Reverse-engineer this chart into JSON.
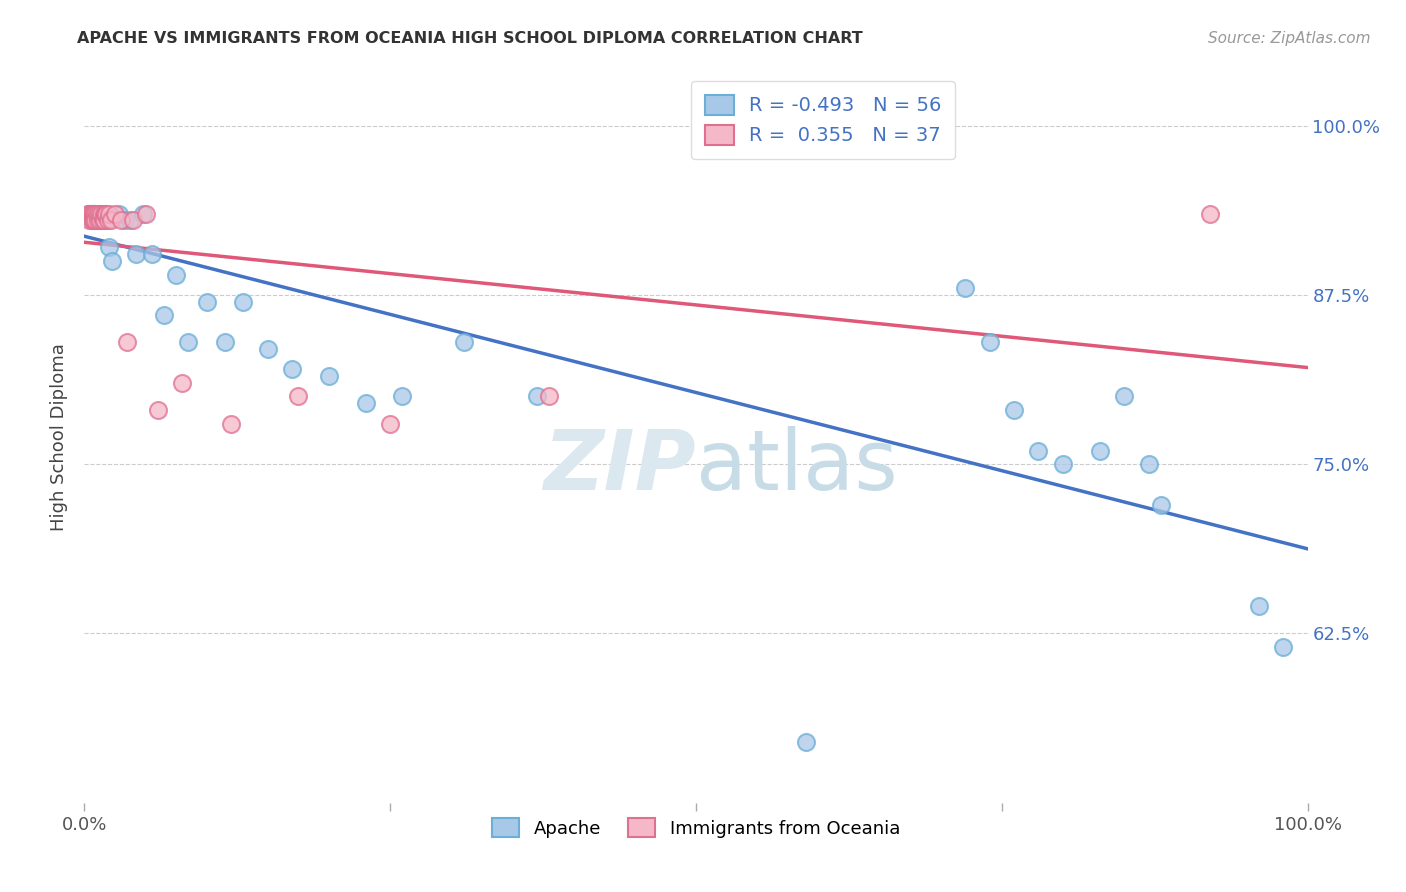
{
  "title": "APACHE VS IMMIGRANTS FROM OCEANIA HIGH SCHOOL DIPLOMA CORRELATION CHART",
  "source": "Source: ZipAtlas.com",
  "ylabel": "High School Diploma",
  "ytick_labels": [
    "62.5%",
    "75.0%",
    "87.5%",
    "100.0%"
  ],
  "ytick_values": [
    0.625,
    0.75,
    0.875,
    1.0
  ],
  "xlim": [
    0.0,
    1.0
  ],
  "ylim": [
    0.5,
    1.04
  ],
  "legend_apache_r": "-0.493",
  "legend_apache_n": "56",
  "legend_oceania_r": "0.355",
  "legend_oceania_n": "37",
  "apache_color": "#a8c8e8",
  "apache_edge_color": "#6baed6",
  "oceania_color": "#f4b8c8",
  "oceania_edge_color": "#e07090",
  "apache_line_color": "#4472c4",
  "oceania_line_color": "#e05878",
  "watermark_color": "#dce8f0",
  "background_color": "#ffffff",
  "apache_x": [
    0.003,
    0.004,
    0.005,
    0.005,
    0.006,
    0.006,
    0.007,
    0.007,
    0.007,
    0.008,
    0.008,
    0.009,
    0.009,
    0.01,
    0.01,
    0.011,
    0.011,
    0.012,
    0.013,
    0.014,
    0.015,
    0.016,
    0.018,
    0.02,
    0.023,
    0.028,
    0.033,
    0.037,
    0.042,
    0.048,
    0.055,
    0.065,
    0.075,
    0.085,
    0.1,
    0.115,
    0.13,
    0.15,
    0.17,
    0.2,
    0.23,
    0.26,
    0.31,
    0.37,
    0.59,
    0.72,
    0.74,
    0.76,
    0.78,
    0.8,
    0.83,
    0.85,
    0.87,
    0.88,
    0.96,
    0.98
  ],
  "apache_y": [
    0.935,
    0.935,
    0.935,
    0.935,
    0.935,
    0.93,
    0.935,
    0.935,
    0.93,
    0.935,
    0.93,
    0.935,
    0.93,
    0.935,
    0.93,
    0.93,
    0.93,
    0.935,
    0.93,
    0.935,
    0.93,
    0.935,
    0.93,
    0.91,
    0.9,
    0.935,
    0.93,
    0.93,
    0.905,
    0.935,
    0.905,
    0.86,
    0.89,
    0.84,
    0.87,
    0.84,
    0.87,
    0.835,
    0.82,
    0.815,
    0.795,
    0.8,
    0.84,
    0.8,
    0.545,
    0.88,
    0.84,
    0.79,
    0.76,
    0.75,
    0.76,
    0.8,
    0.75,
    0.72,
    0.645,
    0.615
  ],
  "oceania_x": [
    0.003,
    0.004,
    0.005,
    0.005,
    0.006,
    0.006,
    0.007,
    0.007,
    0.008,
    0.008,
    0.009,
    0.009,
    0.01,
    0.011,
    0.012,
    0.013,
    0.014,
    0.015,
    0.016,
    0.016,
    0.017,
    0.018,
    0.019,
    0.02,
    0.022,
    0.025,
    0.03,
    0.035,
    0.04,
    0.05,
    0.06,
    0.08,
    0.12,
    0.175,
    0.25,
    0.38,
    0.92
  ],
  "oceania_y": [
    0.935,
    0.93,
    0.935,
    0.935,
    0.935,
    0.93,
    0.935,
    0.93,
    0.935,
    0.93,
    0.935,
    0.93,
    0.935,
    0.93,
    0.935,
    0.93,
    0.935,
    0.93,
    0.935,
    0.93,
    0.935,
    0.935,
    0.93,
    0.935,
    0.93,
    0.935,
    0.93,
    0.84,
    0.93,
    0.935,
    0.79,
    0.81,
    0.78,
    0.8,
    0.78,
    0.8,
    0.935
  ]
}
